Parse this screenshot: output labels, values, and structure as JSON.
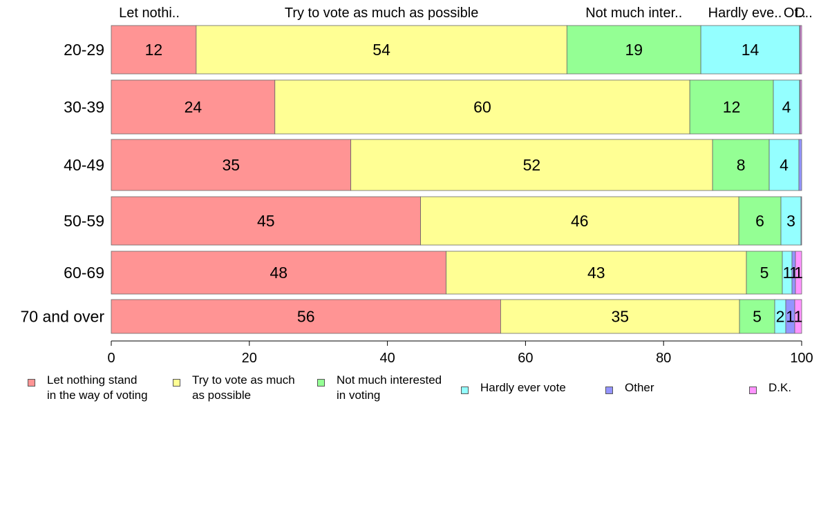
{
  "chart_data": {
    "type": "bar",
    "orientation": "horizontal",
    "stacked": true,
    "categories": [
      "20-29",
      "30-39",
      "40-49",
      "50-59",
      "60-69",
      "70 and over"
    ],
    "series": [
      {
        "name": "Let nothing stand in the way of voting",
        "short": "Let nothi..",
        "color": "#ff9494",
        "values": [
          12.3,
          23.7,
          34.7,
          44.8,
          48.5,
          56.4
        ],
        "labels": [
          "12",
          "24",
          "35",
          "45",
          "48",
          "56"
        ]
      },
      {
        "name": "Try to vote as much as possible",
        "short": "Try to vote as much as possible",
        "color": "#ffff94",
        "values": [
          53.7,
          60.1,
          52.4,
          46.1,
          43.5,
          34.6
        ],
        "labels": [
          "54",
          "60",
          "52",
          "46",
          "43",
          "35"
        ]
      },
      {
        "name": "Not much interested in voting",
        "short": "Not much inter..",
        "color": "#94ff94",
        "values": [
          19.4,
          12.1,
          8.2,
          6.1,
          5.2,
          5.1
        ],
        "labels": [
          "19",
          "12",
          "8",
          "6",
          "5",
          "5"
        ]
      },
      {
        "name": "Hardly ever vote",
        "short": "Hardly eve..",
        "color": "#94ffff",
        "values": [
          14.3,
          3.8,
          4.3,
          2.9,
          1.4,
          1.6
        ],
        "labels": [
          "14",
          "4",
          "4",
          "3",
          "1",
          "2"
        ]
      },
      {
        "name": "Other",
        "short": "Ot..",
        "color": "#9494ff",
        "values": [
          0.1,
          0.1,
          0.4,
          0.1,
          0.5,
          1.3
        ],
        "labels": [
          "",
          "",
          "",
          "",
          "1",
          "1"
        ]
      },
      {
        "name": "D.K.",
        "short": "D..",
        "color": "#ff94ff",
        "values": [
          0.2,
          0.2,
          0.0,
          0.0,
          0.9,
          1.0
        ],
        "labels": [
          "",
          "",
          "",
          "",
          "1",
          "1"
        ]
      }
    ],
    "xlim": [
      0,
      100
    ],
    "xticks": [
      "0",
      "20",
      "40",
      "60",
      "80",
      "100"
    ],
    "grid": false,
    "legend_position": "bottom"
  },
  "legend": [
    {
      "text": "Let nothing stand\nin the way of voting",
      "color": "#ff9494"
    },
    {
      "text": "Try to vote as much\nas possible",
      "color": "#ffff94"
    },
    {
      "text": "Not much interested\nin voting",
      "color": "#94ff94"
    },
    {
      "text": "Hardly ever vote",
      "color": "#94ffff"
    },
    {
      "text": "Other",
      "color": "#9494ff"
    },
    {
      "text": "D.K.",
      "color": "#ff94ff"
    }
  ]
}
